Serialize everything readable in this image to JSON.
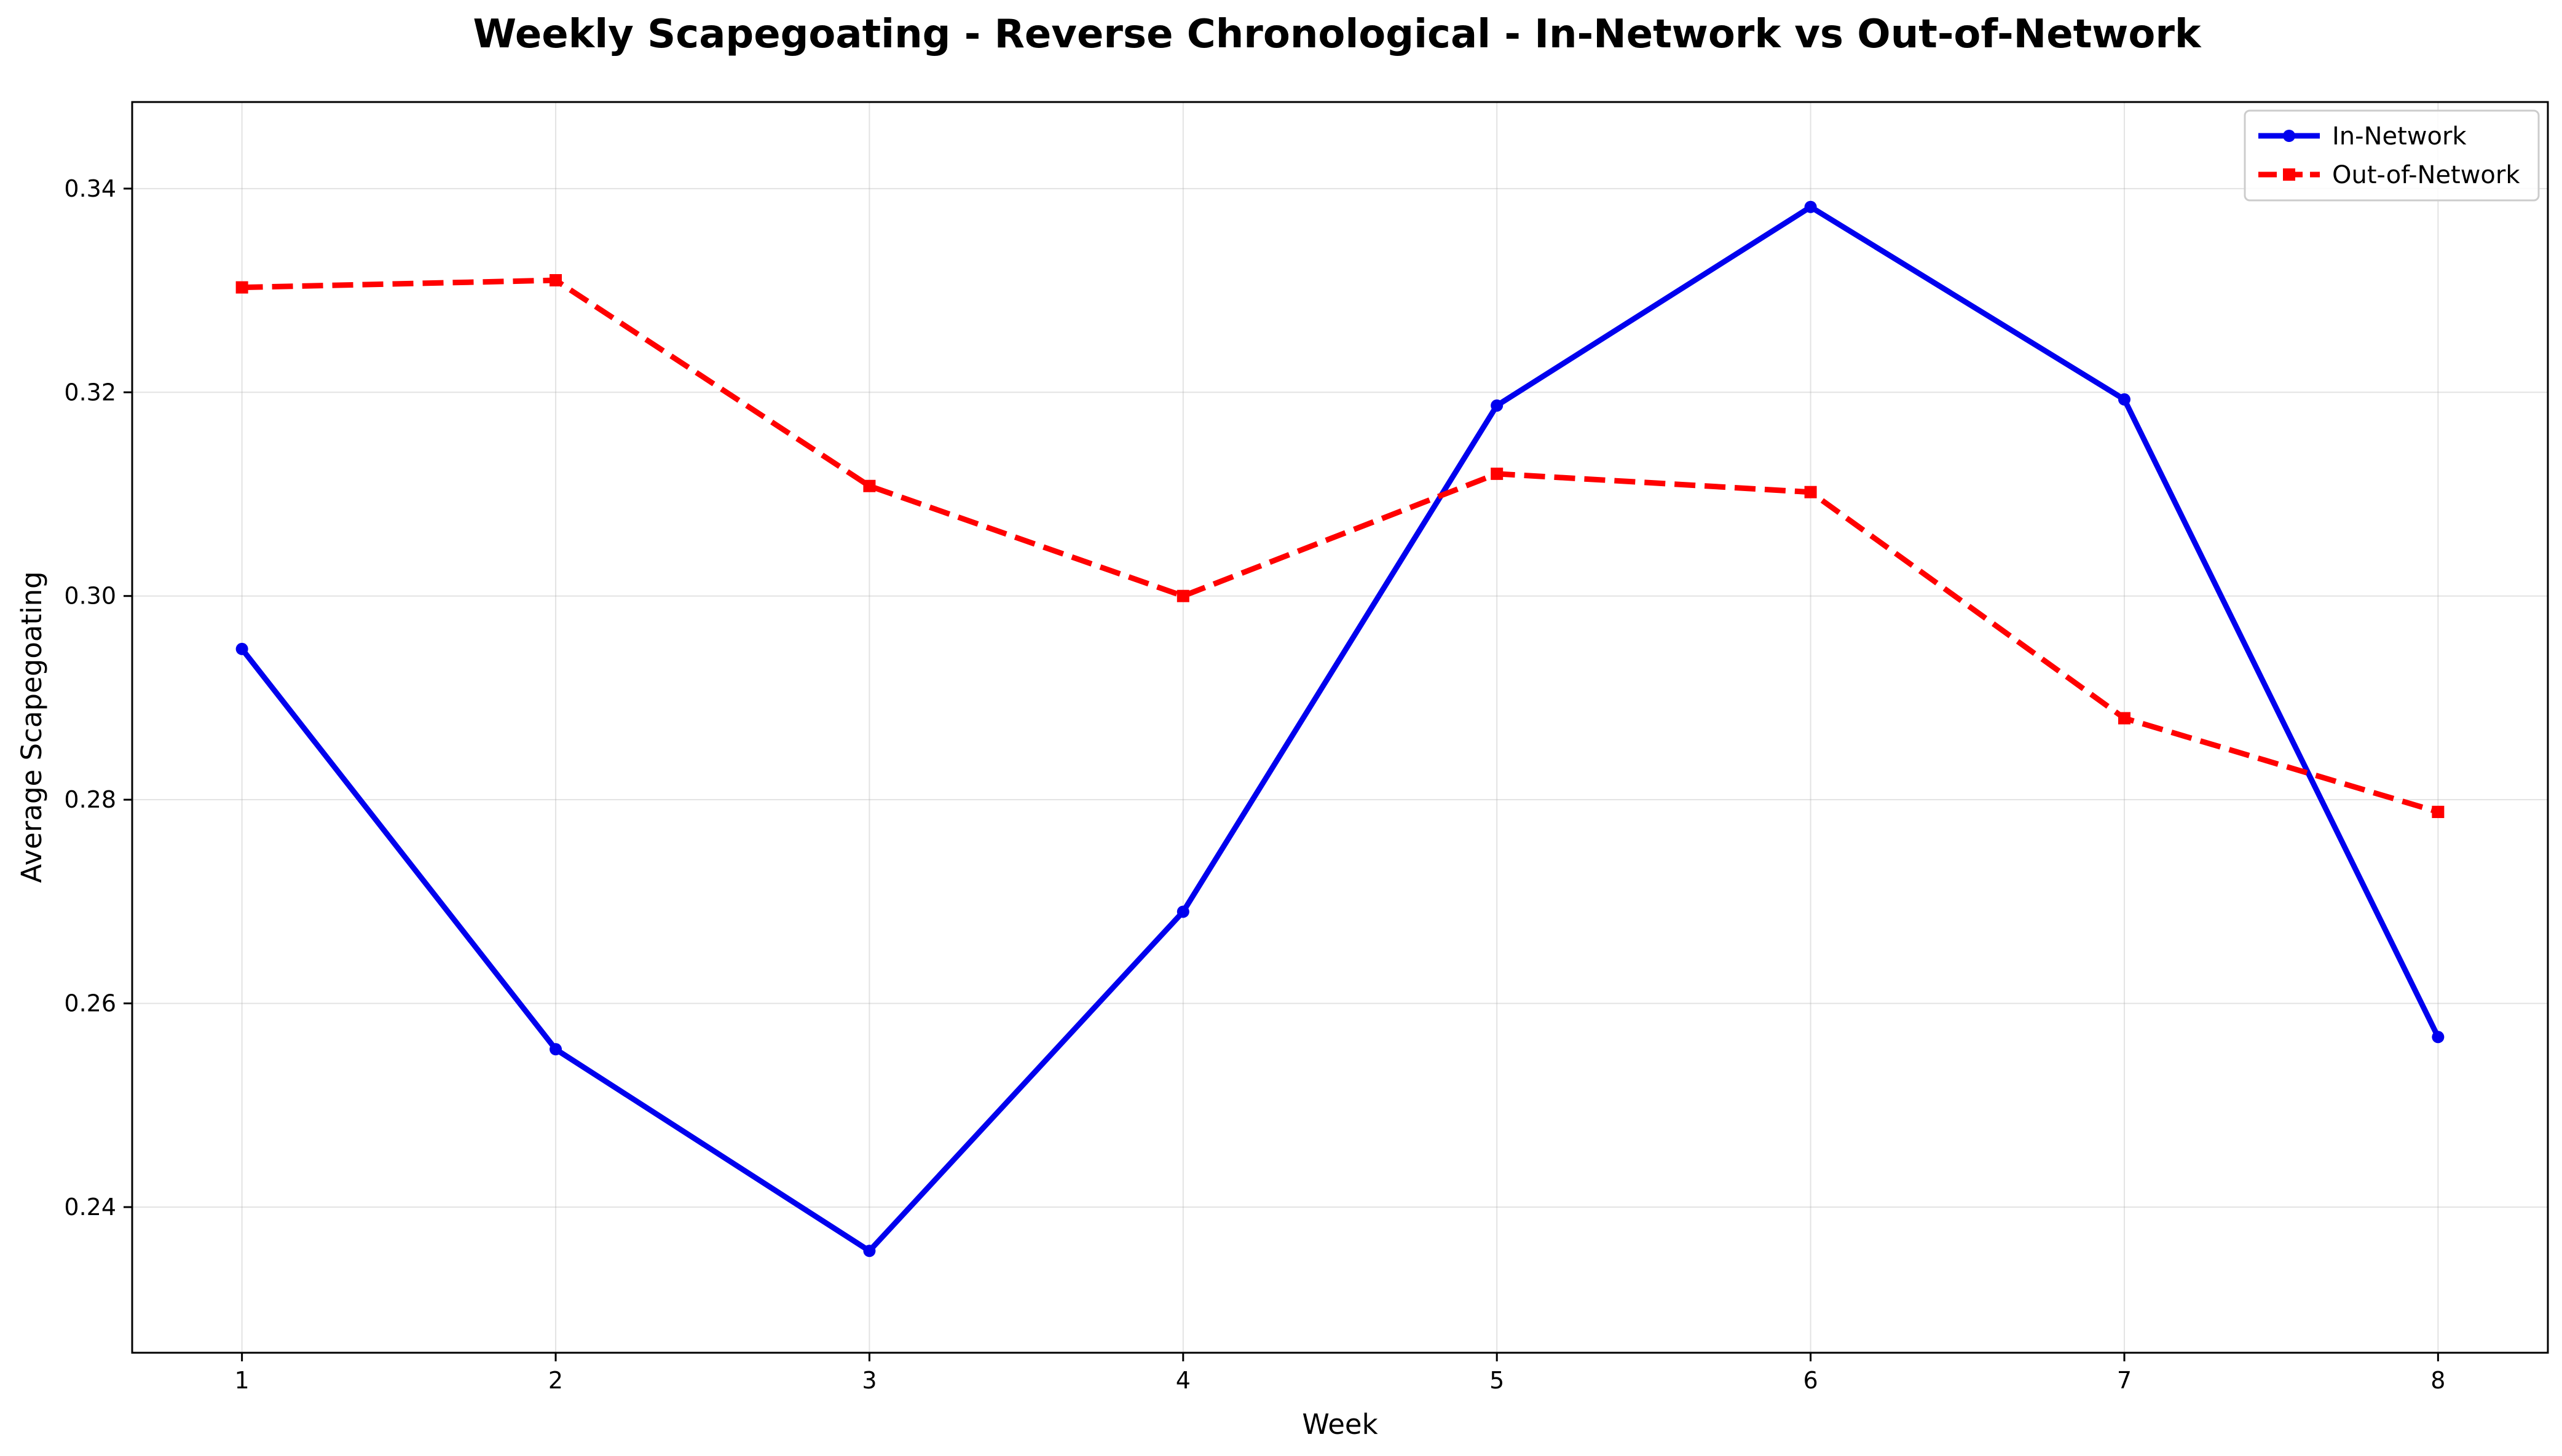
{
  "chart_data": {
    "type": "line",
    "title": "Weekly Scapegoating - Reverse Chronological - In-Network vs Out-of-Network",
    "xlabel": "Week",
    "ylabel": "Average Scapegoating",
    "x": [
      1,
      2,
      3,
      4,
      5,
      6,
      7,
      8
    ],
    "x_tick_labels": [
      "1",
      "2",
      "3",
      "4",
      "5",
      "6",
      "7",
      "8"
    ],
    "xlim": [
      0.65,
      8.35
    ],
    "ylim": [
      0.2257,
      0.3485
    ],
    "y_ticks": [
      0.24,
      0.26,
      0.28,
      0.3,
      0.32,
      0.34
    ],
    "y_tick_labels": [
      "0.24",
      "0.26",
      "0.28",
      "0.30",
      "0.32",
      "0.34"
    ],
    "grid": true,
    "legend_position": "top-right",
    "series": [
      {
        "name": "In-Network",
        "color": "#0000ee",
        "line_style": "solid",
        "marker": "circle",
        "values": [
          0.2948,
          0.2555,
          0.2357,
          0.269,
          0.3187,
          0.3382,
          0.3193,
          0.2567
        ]
      },
      {
        "name": "Out-of-Network",
        "color": "#ff0000",
        "line_style": "dashed",
        "marker": "square",
        "values": [
          0.3303,
          0.331,
          0.3108,
          0.3,
          0.312,
          0.3102,
          0.288,
          0.2788
        ]
      }
    ]
  }
}
